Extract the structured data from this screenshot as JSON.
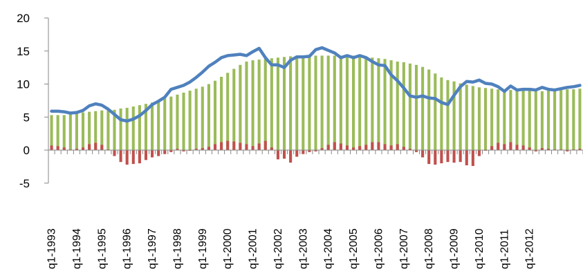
{
  "chart_data": {
    "type": "bar",
    "title": "",
    "xlabel": "",
    "ylabel": "",
    "ylim": [
      -5,
      20
    ],
    "yticks": [
      -5,
      0,
      5,
      10,
      15,
      20
    ],
    "grid": false,
    "x_tick_labels": [
      "q1-1993",
      "q1-1994",
      "q1-1995",
      "q1-1996",
      "q1-1997",
      "q1-1998",
      "q1-1999",
      "q1-2000",
      "q1-2001",
      "q1-2002",
      "q1-2003",
      "q1-2004",
      "q1-2005",
      "q1-2006",
      "q1-2007",
      "q1-2008",
      "q1-2009",
      "q1-2010",
      "q1-2011",
      "q1-2012"
    ],
    "periods_per_tick": 4,
    "series": [
      {
        "color": "#9BBB59",
        "kind": "bar",
        "values": [
          5.3,
          5.3,
          5.3,
          5.4,
          5.6,
          5.7,
          5.8,
          5.9,
          6.0,
          6.0,
          6.1,
          6.3,
          6.4,
          6.6,
          6.8,
          7.0,
          7.2,
          7.5,
          7.8,
          8.1,
          8.4,
          8.7,
          9.0,
          9.3,
          9.6,
          10.0,
          10.5,
          11.1,
          11.7,
          12.3,
          12.9,
          13.4,
          13.6,
          13.7,
          13.8,
          13.9,
          14.0,
          14.1,
          14.2,
          14.3,
          14.3,
          14.3,
          14.3,
          14.3,
          14.3,
          14.3,
          14.3,
          14.3,
          14.3,
          14.2,
          14.1,
          14.0,
          13.9,
          13.8,
          13.6,
          13.4,
          13.3,
          13.1,
          12.9,
          12.6,
          12.2,
          11.6,
          11.0,
          10.6,
          10.4,
          10.1,
          9.9,
          9.7,
          9.5,
          9.4,
          9.3,
          9.2,
          9.2,
          9.1,
          9.0,
          9.0,
          9.0,
          9.0,
          8.9,
          9.0,
          9.0,
          9.1,
          9.2,
          9.2,
          9.3
        ]
      },
      {
        "color": "#C0504D",
        "kind": "bar",
        "values": [
          0.7,
          0.6,
          0.4,
          0.1,
          0.2,
          0.4,
          0.9,
          1.1,
          0.8,
          0.1,
          -0.9,
          -1.8,
          -2.2,
          -2.1,
          -2.0,
          -1.5,
          -1.1,
          -0.9,
          -0.6,
          -0.3,
          0.2,
          -0.2,
          -0.1,
          0.2,
          0.3,
          0.5,
          0.9,
          1.2,
          1.4,
          1.3,
          1.1,
          0.9,
          0.6,
          1.0,
          1.4,
          0.4,
          -1.4,
          -1.3,
          -1.9,
          -1.0,
          -0.6,
          -0.3,
          -0.2,
          0.3,
          0.8,
          1.2,
          1.0,
          0.7,
          0.4,
          0.6,
          0.8,
          1.2,
          1.2,
          0.9,
          0.7,
          0.9,
          0.5,
          0.2,
          -0.3,
          -1.1,
          -2.1,
          -2.2,
          -2.0,
          -1.8,
          -1.9,
          -1.8,
          -2.3,
          -2.4,
          -0.9,
          -0.1,
          0.6,
          1.1,
          0.9,
          1.2,
          0.8,
          0.7,
          0.4,
          -0.2,
          0.3,
          0.2,
          0.1,
          0.1,
          -0.2,
          0.1,
          0.2
        ]
      },
      {
        "color": "#4F81BD",
        "kind": "line",
        "values": [
          5.9,
          5.9,
          5.8,
          5.6,
          5.7,
          6.0,
          6.7,
          7.0,
          6.8,
          6.2,
          5.4,
          4.6,
          4.4,
          4.7,
          5.2,
          6.0,
          6.9,
          7.4,
          8.0,
          9.2,
          9.5,
          9.8,
          10.3,
          11.0,
          11.8,
          12.7,
          13.3,
          14.0,
          14.3,
          14.4,
          14.5,
          14.3,
          14.9,
          15.4,
          14.0,
          12.9,
          12.9,
          12.5,
          13.6,
          14.1,
          14.1,
          14.2,
          15.2,
          15.5,
          15.1,
          14.7,
          14.0,
          14.3,
          14.0,
          14.3,
          14.0,
          13.4,
          12.9,
          12.8,
          11.4,
          10.5,
          9.4,
          8.2,
          8.0,
          8.2,
          7.9,
          7.8,
          7.2,
          6.9,
          8.3,
          9.6,
          10.4,
          10.3,
          10.6,
          10.1,
          10.0,
          9.6,
          8.9,
          9.7,
          9.1,
          9.2,
          9.2,
          9.1,
          9.5,
          9.2,
          9.1,
          9.3,
          9.5,
          9.6,
          9.8
        ]
      }
    ]
  }
}
